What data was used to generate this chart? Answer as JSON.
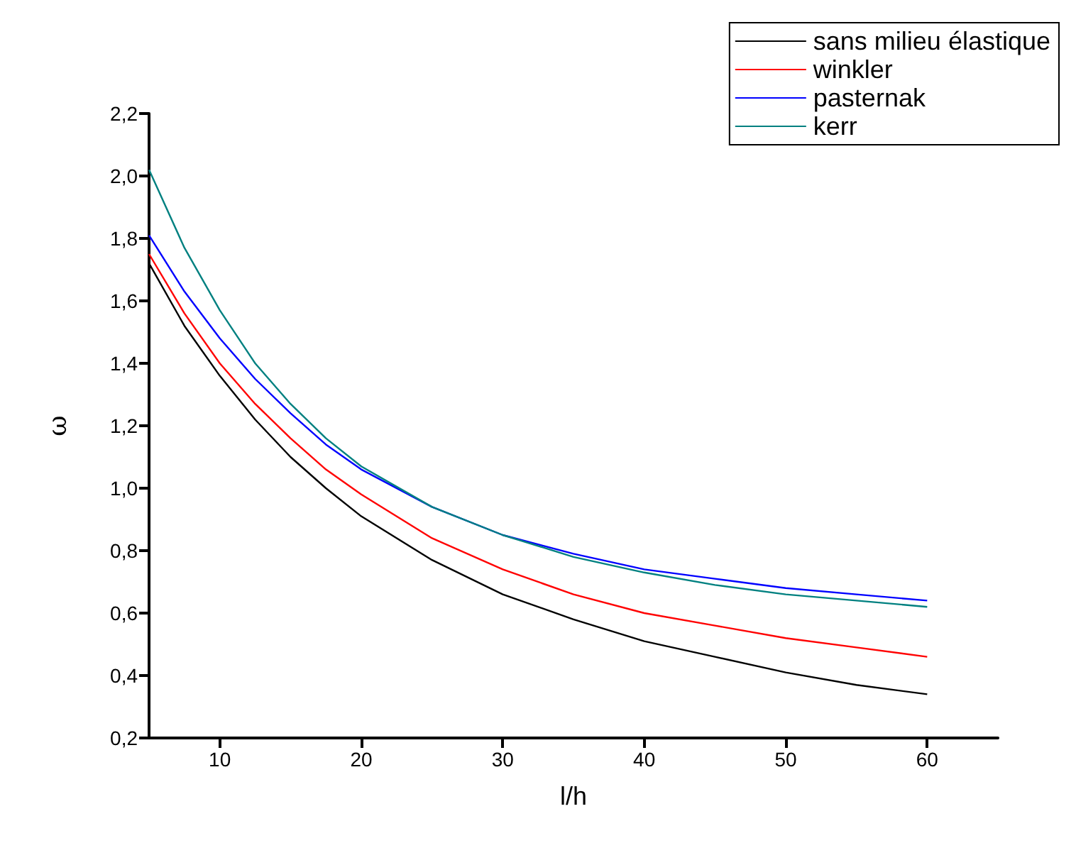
{
  "chart_data": {
    "type": "line",
    "xlabel": "l/h",
    "ylabel": "ω",
    "x": [
      5,
      7.5,
      10,
      12.5,
      15,
      17.5,
      20,
      25,
      30,
      35,
      40,
      45,
      50,
      55,
      60
    ],
    "series": [
      {
        "name": "sans milieu élastique",
        "color": "#000000",
        "values": [
          1.72,
          1.52,
          1.36,
          1.22,
          1.1,
          1.0,
          0.91,
          0.77,
          0.66,
          0.58,
          0.51,
          0.46,
          0.41,
          0.37,
          0.34
        ]
      },
      {
        "name": "winkler",
        "color": "#ff0000",
        "values": [
          1.75,
          1.56,
          1.4,
          1.27,
          1.16,
          1.06,
          0.98,
          0.84,
          0.74,
          0.66,
          0.6,
          0.56,
          0.52,
          0.49,
          0.46
        ]
      },
      {
        "name": "pasternak",
        "color": "#0000ff",
        "values": [
          1.81,
          1.63,
          1.48,
          1.35,
          1.24,
          1.14,
          1.06,
          0.94,
          0.85,
          0.79,
          0.74,
          0.71,
          0.68,
          0.66,
          0.64
        ]
      },
      {
        "name": "kerr",
        "color": "#008080",
        "values": [
          2.02,
          1.77,
          1.57,
          1.4,
          1.27,
          1.16,
          1.07,
          0.94,
          0.85,
          0.78,
          0.73,
          0.69,
          0.66,
          0.64,
          0.62
        ]
      }
    ],
    "xlim": [
      5,
      65
    ],
    "xticks": [
      10,
      20,
      30,
      40,
      50,
      60
    ],
    "ylim": [
      0.2,
      2.2
    ],
    "yticks": [
      {
        "value": 0.2,
        "label": "0,2"
      },
      {
        "value": 0.4,
        "label": "0,4"
      },
      {
        "value": 0.6,
        "label": "0,6"
      },
      {
        "value": 0.8,
        "label": "0,8"
      },
      {
        "value": 1.0,
        "label": "1,0"
      },
      {
        "value": 1.2,
        "label": "1,2"
      },
      {
        "value": 1.4,
        "label": "1,4"
      },
      {
        "value": 1.6,
        "label": "1,6"
      },
      {
        "value": 1.8,
        "label": "1,8"
      },
      {
        "value": 2.0,
        "label": "2,0"
      },
      {
        "value": 2.2,
        "label": "2,2"
      }
    ],
    "grid": false,
    "legend": "top right",
    "marker": "none",
    "line_style": "solid"
  }
}
